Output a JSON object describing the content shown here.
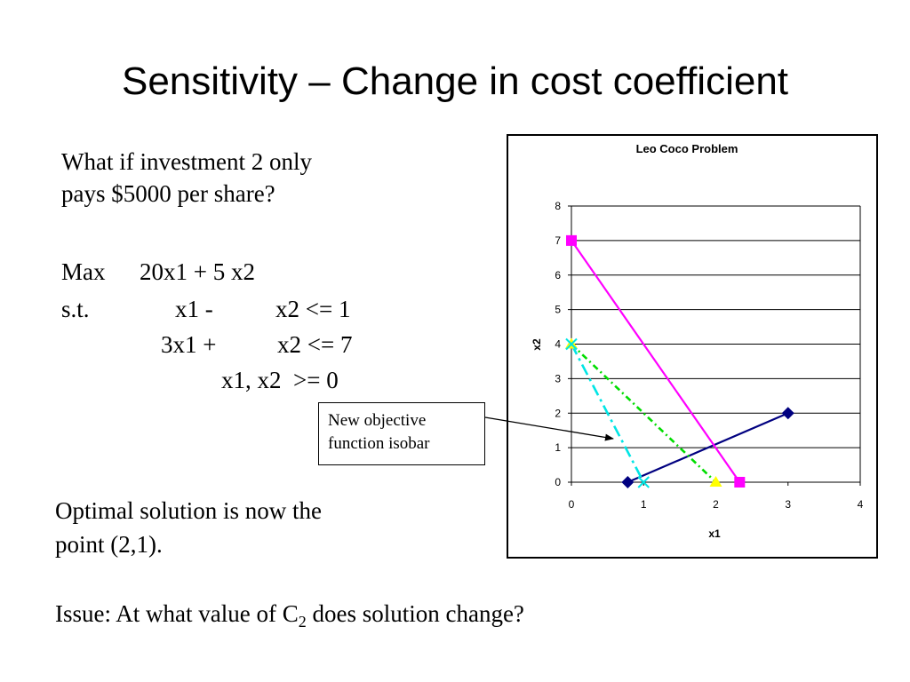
{
  "slide": {
    "title": "Sensitivity – Change in cost coefficient",
    "question_line1": "What if investment 2 only",
    "question_line2": "pays $5000 per share?",
    "model": {
      "objective_label": "Max",
      "objective": "20x1 + 5 x2",
      "st_label": "s.t.",
      "c1_a": "x1 -",
      "c1_b": "x2 <= 1",
      "c2_a": "3x1 +",
      "c2_b": "x2 <= 7",
      "nonneg": "x1, x2  >= 0"
    },
    "solution_line1": "Optimal solution is now the",
    "solution_line2": "point (2,1).",
    "issue_prefix": "Issue: At what value of C",
    "issue_sub": "2",
    "issue_suffix": " does solution change?",
    "callout_line1": "New objective",
    "callout_line2": "function isobar"
  },
  "chart_data": {
    "type": "line",
    "title": "Leo Coco Problem",
    "xlabel": "x1",
    "ylabel": "x2",
    "xlim": [
      0,
      4
    ],
    "ylim": [
      0,
      8
    ],
    "xticks": [
      "0",
      "1",
      "2",
      "3",
      "4"
    ],
    "yticks": [
      "0",
      "1",
      "2",
      "3",
      "4",
      "5",
      "6",
      "7",
      "8"
    ],
    "grid": "horizontal",
    "series": [
      {
        "points": [
          [
            0.78,
            0
          ],
          [
            3,
            2
          ]
        ],
        "color": "#000080",
        "style": "solid",
        "marker": "diamond"
      },
      {
        "points": [
          [
            0,
            7
          ],
          [
            2.33,
            0
          ]
        ],
        "color": "#ff00ff",
        "style": "solid",
        "marker": "square"
      },
      {
        "points": [
          [
            0,
            4
          ],
          [
            2,
            0
          ]
        ],
        "color": "#00dd00",
        "style": "dashdot",
        "marker": "triangle",
        "marker_color": "#ffff00"
      },
      {
        "points": [
          [
            0,
            4
          ],
          [
            1,
            0
          ]
        ],
        "color": "#00e5e5",
        "style": "longdashdot",
        "marker": "x"
      }
    ]
  }
}
